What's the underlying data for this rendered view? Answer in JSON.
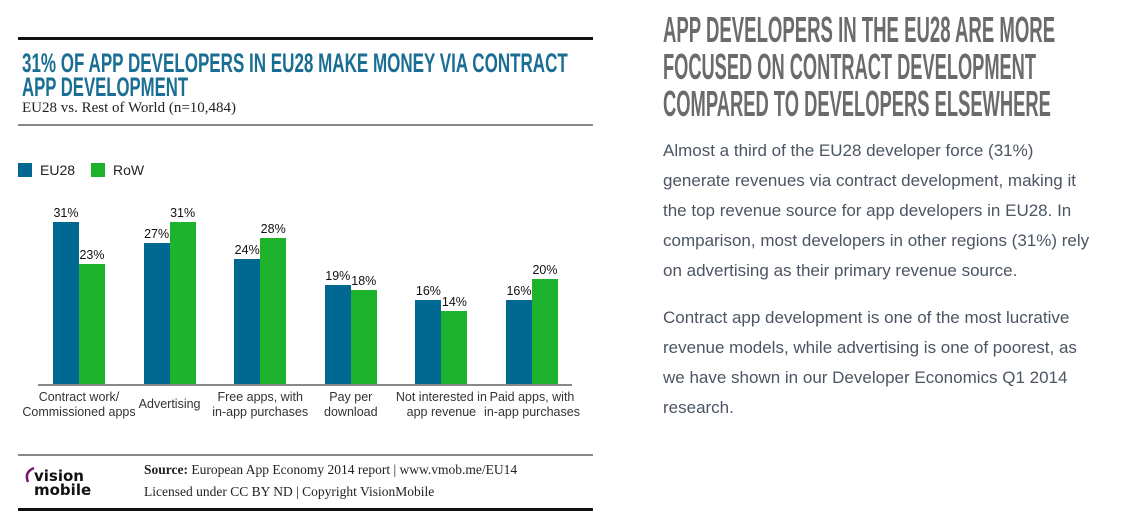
{
  "chart_data": {
    "type": "bar",
    "title": "31% OF APP DEVELOPERS IN EU28 MAKE MONEY VIA CONTRACT APP DEVELOPMENT",
    "title_lines": [
      "31% OF APP DEVELOPERS IN EU28 MAKE MONEY VIA CONTRACT",
      "APP DEVELOPMENT"
    ],
    "subtitle": "EU28 vs. Rest of World (n=10,484)",
    "categories": [
      [
        "Contract work/",
        "Commissioned apps"
      ],
      [
        "Advertising"
      ],
      [
        "Free apps, with",
        "in-app purchases"
      ],
      [
        "Pay per",
        "download"
      ],
      [
        "Not interested in",
        "app revenue"
      ],
      [
        "Paid apps, with",
        "in-app purchases"
      ]
    ],
    "series": [
      {
        "name": "EU28",
        "color": "#006891",
        "values": [
          31,
          27,
          24,
          19,
          16,
          16
        ]
      },
      {
        "name": "RoW",
        "color": "#1db32c",
        "values": [
          23,
          31,
          28,
          18,
          14,
          20
        ]
      }
    ],
    "value_suffix": "%",
    "ylim": [
      0,
      31
    ],
    "grid": false,
    "legend_position": "top-left"
  },
  "footer": {
    "source_label": "Source:",
    "source_text": " European App Economy 2014 report | www.vmob.me/EU14",
    "license": "Licensed under CC BY ND | Copyright VisionMobile",
    "logo_text": [
      "vision",
      "mobile"
    ]
  },
  "article": {
    "heading_lines": [
      "APP DEVELOPERS IN THE EU28 ARE MORE",
      "FOCUSED ON CONTRACT DEVELOPMENT",
      "COMPARED TO DEVELOPERS ELSEWHERE"
    ],
    "paragraphs": [
      "Almost a third of the EU28 developer force (31%) generate revenues via contract development, making it the top revenue source for app developers in EU28. In comparison, most developers in other regions (31%) rely on advertising as their primary revenue source.",
      "Contract app development is one of the most lucrative revenue models, while advertising is one of poorest, as we have shown in our Developer Economics Q1 2014 research."
    ]
  }
}
